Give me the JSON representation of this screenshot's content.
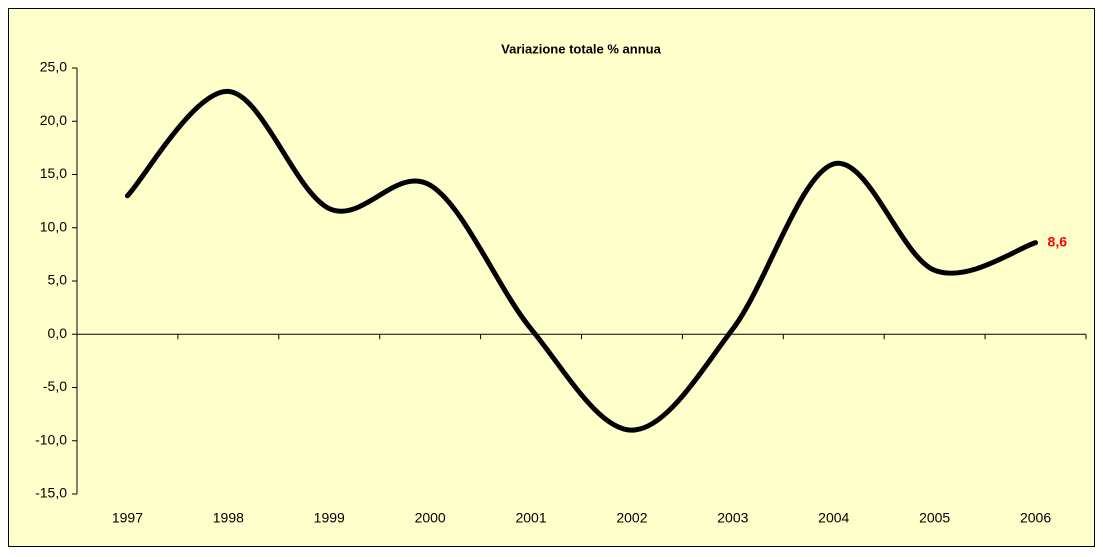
{
  "chart_data": {
    "type": "line",
    "title": "Variazione totale % annua",
    "categories": [
      "1997",
      "1998",
      "1999",
      "2000",
      "2001",
      "2002",
      "2003",
      "2004",
      "2005",
      "2006"
    ],
    "series": [
      {
        "name": "Variazione totale % annua",
        "color": "#000000",
        "values": [
          13.0,
          22.8,
          11.8,
          14.0,
          0.5,
          -9.0,
          0.5,
          16.0,
          6.0,
          8.6
        ],
        "value_labels": [
          null,
          null,
          null,
          null,
          null,
          null,
          null,
          null,
          null,
          "8,6"
        ],
        "label_color": "#ff0000"
      }
    ],
    "ylim": [
      -15,
      25
    ],
    "yticks": [
      {
        "value": -15,
        "label": "-15,0"
      },
      {
        "value": -10,
        "label": "-10,0"
      },
      {
        "value": -5,
        "label": "-5,0"
      },
      {
        "value": 0,
        "label": "0,0"
      },
      {
        "value": 5,
        "label": "5,0"
      },
      {
        "value": 10,
        "label": "10,0"
      },
      {
        "value": 15,
        "label": "15,0"
      },
      {
        "value": 20,
        "label": "20,0"
      },
      {
        "value": 25,
        "label": "25,0"
      }
    ],
    "grid": false,
    "smooth": true
  }
}
